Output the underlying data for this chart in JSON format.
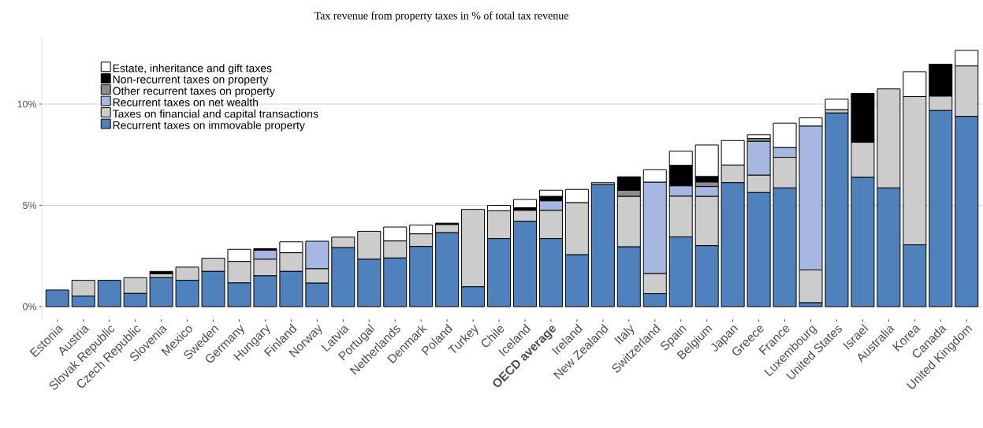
{
  "chart_data": {
    "type": "bar",
    "stacked": true,
    "title": "Tax revenue from property taxes in % of total tax revenue",
    "categories": [
      "Estonia",
      "Austria",
      "Slovak Republic",
      "Czech Republic",
      "Slovenia",
      "Mexico",
      "Sweden",
      "Germany",
      "Hungary",
      "Finland",
      "Norway",
      "Latvia",
      "Portugal",
      "Netherlands",
      "Denmark",
      "Poland",
      "Turkey",
      "Chile",
      "Iceland",
      "**OECD average**",
      "Ireland",
      "New Zealand",
      "Italy",
      "Switzerland",
      "Spain",
      "Belgium",
      "Japan",
      "Greece",
      "France",
      "Luxembourg",
      "United States",
      "Israel",
      "Australia",
      "Korea",
      "Canada",
      "United Kingdom"
    ],
    "series": [
      {
        "name": "Recurrent taxes on immovable property",
        "color": "#4f81bd",
        "values": [
          0.82,
          0.52,
          1.3,
          0.65,
          1.43,
          1.3,
          1.74,
          1.17,
          1.52,
          1.74,
          1.16,
          2.91,
          2.34,
          2.4,
          2.97,
          3.65,
          0.98,
          3.36,
          4.21,
          3.36,
          2.56,
          6.02,
          2.95,
          0.64,
          3.44,
          3.01,
          6.12,
          5.63,
          5.86,
          0.19,
          9.56,
          6.38,
          5.86,
          3.05,
          9.68,
          9.39
        ]
      },
      {
        "name": "Taxes on financial and capital transactions",
        "color": "#cccccc",
        "values": [
          0,
          0.78,
          0,
          0.78,
          0.19,
          0.65,
          0.65,
          1.06,
          0.82,
          0.92,
          0.71,
          0.52,
          1.38,
          0.84,
          0.62,
          0.4,
          3.82,
          1.37,
          0.54,
          1.39,
          2.57,
          0.1,
          2.49,
          0.99,
          2.01,
          2.43,
          0.87,
          0.86,
          1.51,
          1.62,
          0.16,
          1.73,
          4.89,
          7.32,
          0.71,
          2.49
        ]
      },
      {
        "name": "Recurrent taxes on net wealth",
        "color": "#a6b7e2",
        "values": [
          0,
          0,
          0,
          0,
          0,
          0,
          0,
          0,
          0.44,
          0,
          1.36,
          0,
          0,
          0,
          0,
          0,
          0,
          0,
          0,
          0.47,
          0,
          0,
          0,
          4.51,
          0.51,
          0.49,
          0,
          1.67,
          0.48,
          7.1,
          0,
          0,
          0,
          0,
          0,
          0
        ]
      },
      {
        "name": "Other recurrent taxes on property",
        "color": "#8c8c8c",
        "values": [
          0,
          0,
          0,
          0,
          0,
          0,
          0,
          0,
          0,
          0,
          0,
          0,
          0,
          0,
          0,
          0,
          0,
          0,
          0,
          0,
          0,
          0,
          0.3,
          0,
          0,
          0.22,
          0,
          0.14,
          0,
          0,
          0,
          0,
          0,
          0,
          0,
          0
        ]
      },
      {
        "name": "Non-recurrent taxes on property",
        "color": "#000000",
        "values": [
          0,
          0,
          0,
          0,
          0.12,
          0,
          0,
          0,
          0.08,
          0,
          0,
          null,
          0,
          0,
          0,
          0.07,
          0,
          0,
          0.13,
          0.22,
          0,
          0,
          0.67,
          0,
          1.01,
          0.27,
          0,
          0,
          0,
          0,
          0,
          2.42,
          0,
          0,
          1.58,
          0
        ]
      },
      {
        "name": "Estate, inheritance and gift taxes",
        "color": "#ffffff",
        "values": [
          0,
          0,
          0,
          0,
          0,
          0,
          0,
          0.6,
          0,
          0.54,
          0,
          0,
          0,
          0.69,
          0.44,
          0,
          0,
          0.27,
          0.41,
          0.31,
          0.66,
          0,
          null,
          0.62,
          0.7,
          1.56,
          1.21,
          0.19,
          1.21,
          0.41,
          0.52,
          0,
          0,
          1.23,
          0,
          0.77
        ]
      }
    ],
    "ylim": [
      -0.63,
      13.29
    ],
    "yticks": [
      {
        "value": 0,
        "label": "0%"
      },
      {
        "value": 5,
        "label": "5%"
      },
      {
        "value": 10,
        "label": "10%"
      }
    ],
    "grid": "y",
    "legend": "top left"
  }
}
